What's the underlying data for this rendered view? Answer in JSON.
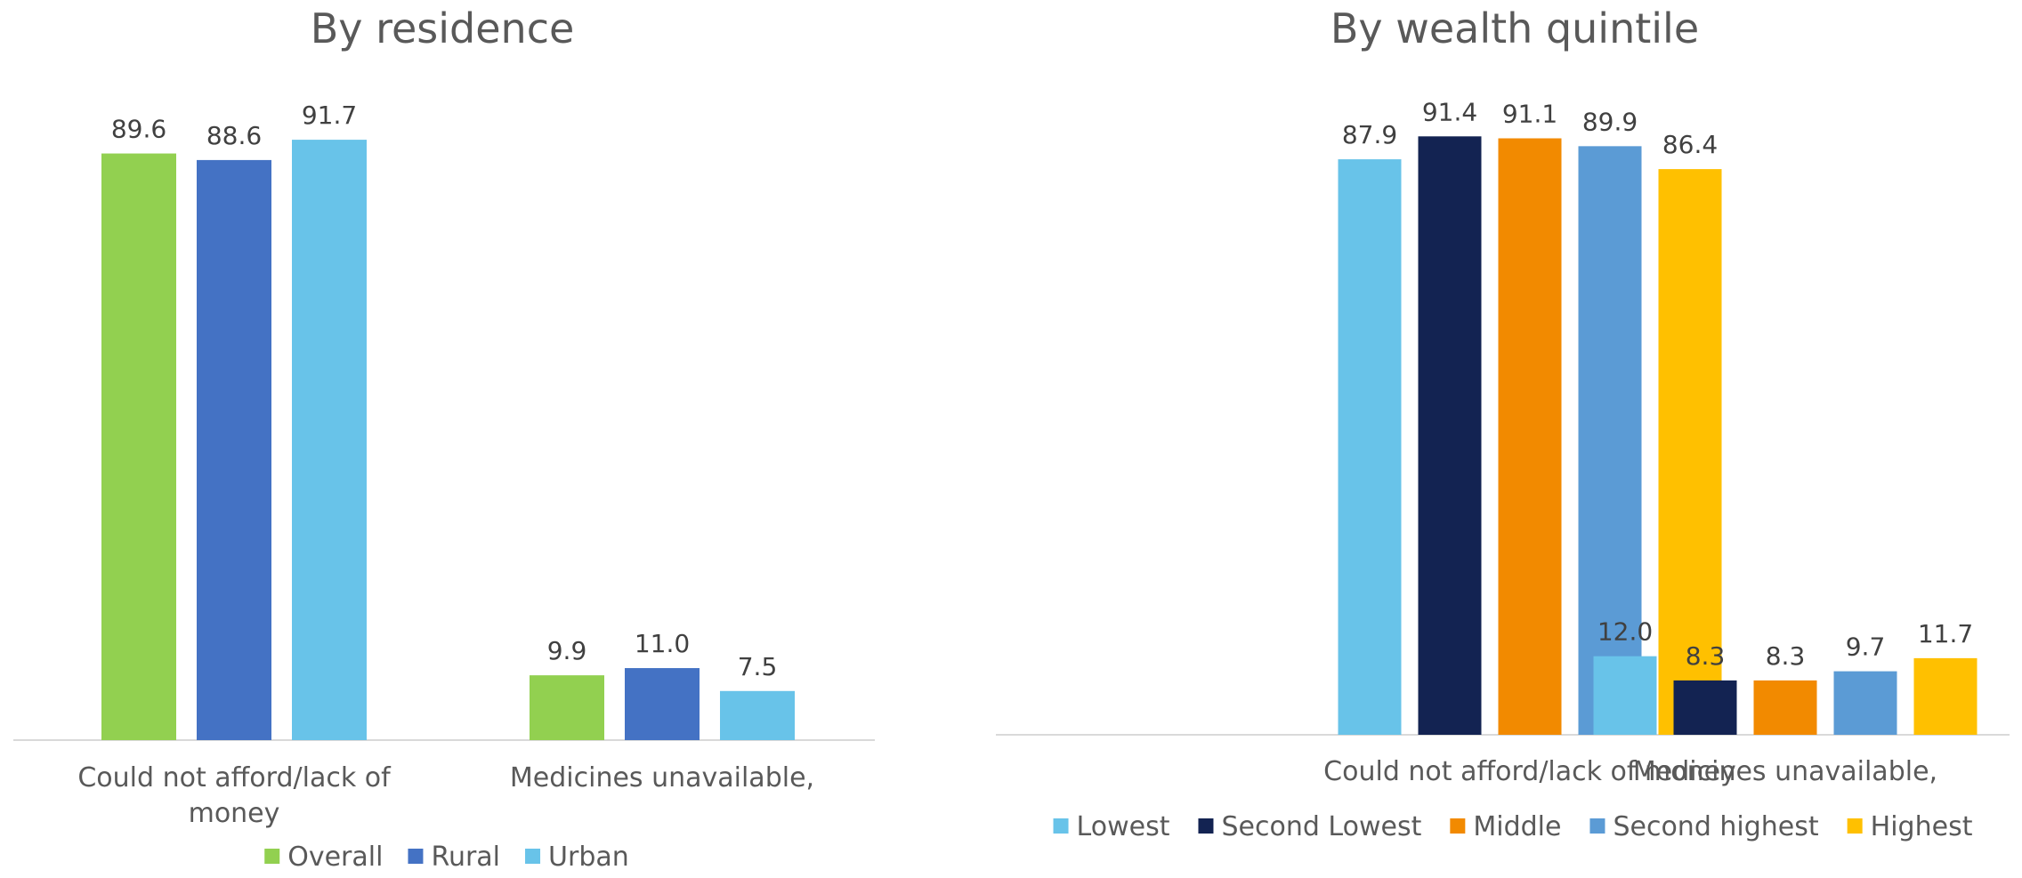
{
  "chart_data": [
    {
      "type": "bar",
      "title": "By residence",
      "categories": [
        [
          "Could not afford/lack of",
          "money"
        ],
        [
          "Medicines unavailable,"
        ]
      ],
      "series": [
        {
          "name": "Overall",
          "color": "#92d050",
          "values": [
            89.6,
            9.9
          ]
        },
        {
          "name": "Rural",
          "color": "#4472c4",
          "values": [
            88.6,
            11.0
          ]
        },
        {
          "name": "Urban",
          "color": "#68c3e9",
          "values": [
            91.7,
            7.5
          ]
        }
      ],
      "data_labels": [
        [
          "89.6",
          "9.9"
        ],
        [
          "88.6",
          "11.0"
        ],
        [
          "91.7",
          "7.5"
        ]
      ],
      "ylim": [
        0,
        100
      ],
      "xlabel": "",
      "ylabel": "",
      "grid": false,
      "legend_position": "bottom"
    },
    {
      "type": "bar",
      "title": "By wealth quintile",
      "categories": [
        [
          "Could not afford/lack of money"
        ],
        [
          "Medicines unavailable,"
        ]
      ],
      "series": [
        {
          "name": "Lowest",
          "color": "#68c3e9",
          "values": [
            87.9,
            12.0
          ]
        },
        {
          "name": "Second Lowest",
          "color": "#132352",
          "values": [
            91.4,
            8.3
          ]
        },
        {
          "name": "Middle",
          "color": "#f28a00",
          "values": [
            91.1,
            8.3
          ]
        },
        {
          "name": "Second highest",
          "color": "#5b9bd5",
          "values": [
            89.9,
            9.7
          ]
        },
        {
          "name": "Highest",
          "color": "#ffc000",
          "values": [
            86.4,
            11.7
          ]
        }
      ],
      "data_labels": [
        [
          "87.9",
          "12.0"
        ],
        [
          "91.4",
          "8.3"
        ],
        [
          "91.1",
          "8.3"
        ],
        [
          "89.9",
          "9.7"
        ],
        [
          "86.4",
          "11.7"
        ]
      ],
      "ylim": [
        0,
        100
      ],
      "xlabel": "",
      "ylabel": "",
      "grid": false,
      "legend_position": "bottom"
    }
  ]
}
